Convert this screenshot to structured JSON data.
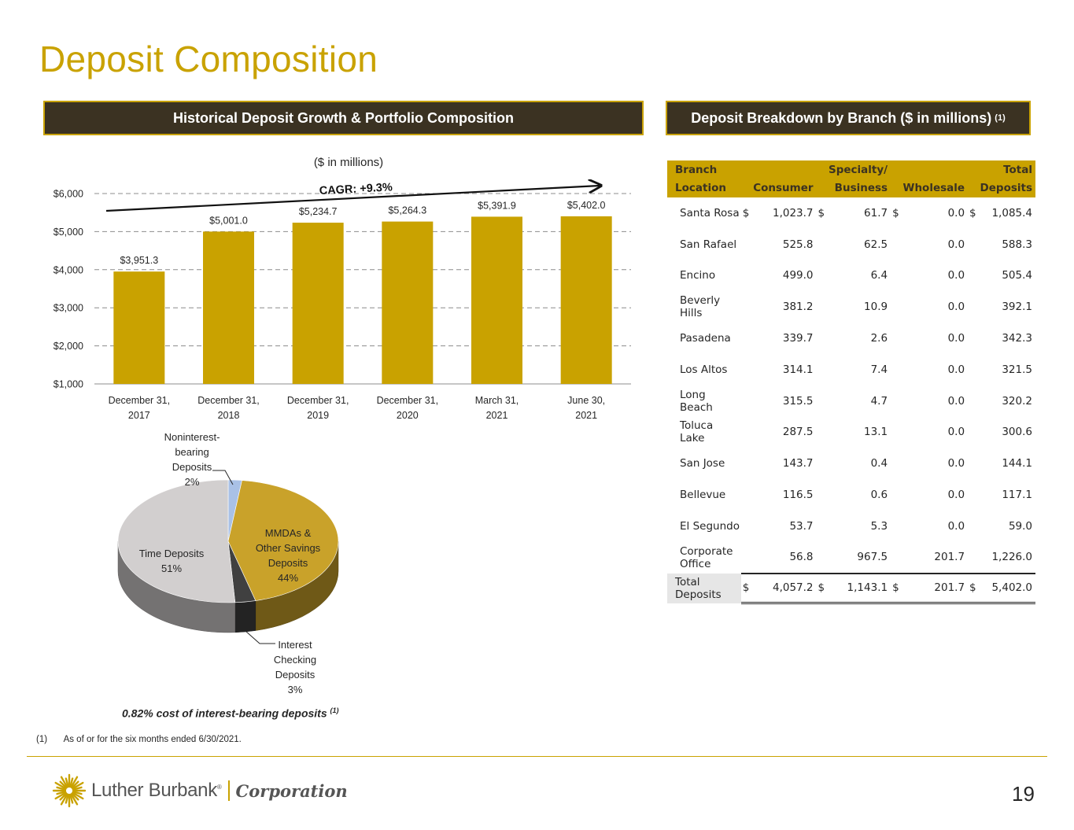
{
  "title": "Deposit Composition",
  "left_header": "Historical Deposit Growth & Portfolio Composition",
  "right_header": "Deposit Breakdown by Branch ($ in millions)",
  "right_header_footnote": "(1)",
  "chart_data": [
    {
      "type": "bar",
      "title": "($ in millions)",
      "categories": [
        [
          "December 31,",
          "2017"
        ],
        [
          "December 31,",
          "2018"
        ],
        [
          "December 31,",
          "2019"
        ],
        [
          "December 31,",
          "2020"
        ],
        [
          "March 31,",
          "2021"
        ],
        [
          "June 30,",
          "2021"
        ]
      ],
      "values": [
        3951.3,
        5001.0,
        5234.7,
        5264.3,
        5391.9,
        5402.0
      ],
      "data_labels": [
        "$3,951.3",
        "$5,001.0",
        "$5,234.7",
        "$5,264.3",
        "$5,391.9",
        "$5,402.0"
      ],
      "ylim": [
        1000,
        6000
      ],
      "yticks": [
        1000,
        2000,
        3000,
        4000,
        5000,
        6000
      ],
      "ytick_labels": [
        "$1,000",
        "$2,000",
        "$3,000",
        "$4,000",
        "$5,000",
        "$6,000"
      ],
      "grid": true,
      "annotation": "CAGR: +9.3%",
      "color": "#c9a200"
    },
    {
      "type": "pie",
      "slices": [
        {
          "label": [
            "Noninterest-",
            "bearing",
            "Deposits",
            "2%"
          ],
          "value": 2,
          "color": "#a9c1e6"
        },
        {
          "label": [
            "MMDAs &",
            "Other Savings",
            "Deposits",
            "44%"
          ],
          "value": 44,
          "color": "#c9a22a"
        },
        {
          "label": [
            "Interest",
            "Checking",
            "Deposits",
            "3%"
          ],
          "value": 3,
          "color": "#404040"
        },
        {
          "label": [
            "Time Deposits",
            "51%"
          ],
          "value": 51,
          "color": "#d2cfcf"
        }
      ]
    }
  ],
  "cost_note": "0.82% cost of interest-bearing deposits",
  "cost_note_footnote": "(1)",
  "footnote": {
    "num": "(1)",
    "text": "As of or for the six months ended 6/30/2021."
  },
  "table": {
    "headers": {
      "location": "Branch Location",
      "consumer": "Consumer",
      "specialty_top": "Specialty/",
      "specialty_bottom": "Business",
      "wholesale": "Wholesale",
      "total_top": "Total",
      "total_bottom": "Deposits"
    },
    "rows": [
      {
        "name": "Santa Rosa",
        "consumer": "1,023.7",
        "specialty": "61.7",
        "wholesale": "0.0",
        "total": "1,085.4",
        "dollar": true
      },
      {
        "name": "San Rafael",
        "consumer": "525.8",
        "specialty": "62.5",
        "wholesale": "0.0",
        "total": "588.3"
      },
      {
        "name": "Encino",
        "consumer": "499.0",
        "specialty": "6.4",
        "wholesale": "0.0",
        "total": "505.4"
      },
      {
        "name": "Beverly Hills",
        "consumer": "381.2",
        "specialty": "10.9",
        "wholesale": "0.0",
        "total": "392.1"
      },
      {
        "name": "Pasadena",
        "consumer": "339.7",
        "specialty": "2.6",
        "wholesale": "0.0",
        "total": "342.3"
      },
      {
        "name": "Los Altos",
        "consumer": "314.1",
        "specialty": "7.4",
        "wholesale": "0.0",
        "total": "321.5"
      },
      {
        "name": "Long Beach",
        "consumer": "315.5",
        "specialty": "4.7",
        "wholesale": "0.0",
        "total": "320.2"
      },
      {
        "name": "Toluca Lake",
        "consumer": "287.5",
        "specialty": "13.1",
        "wholesale": "0.0",
        "total": "300.6"
      },
      {
        "name": "San Jose",
        "consumer": "143.7",
        "specialty": "0.4",
        "wholesale": "0.0",
        "total": "144.1"
      },
      {
        "name": "Bellevue",
        "consumer": "116.5",
        "specialty": "0.6",
        "wholesale": "0.0",
        "total": "117.1"
      },
      {
        "name": "El Segundo",
        "consumer": "53.7",
        "specialty": "5.3",
        "wholesale": "0.0",
        "total": "59.0"
      },
      {
        "name": "Corporate Office",
        "consumer": "56.8",
        "specialty": "967.5",
        "wholesale": "201.7",
        "total": "1,226.0"
      }
    ],
    "total": {
      "name": "Total Deposits",
      "consumer": "4,057.2",
      "specialty": "1,143.1",
      "wholesale": "201.7",
      "total": "5,402.0"
    },
    "currency": "$"
  },
  "logo": {
    "brand": "Luther Burbank",
    "mark": "®",
    "corp": "Corporation"
  },
  "page_number": "19",
  "colors": {
    "accent": "#c9a200",
    "header_bg": "#3b3222"
  }
}
